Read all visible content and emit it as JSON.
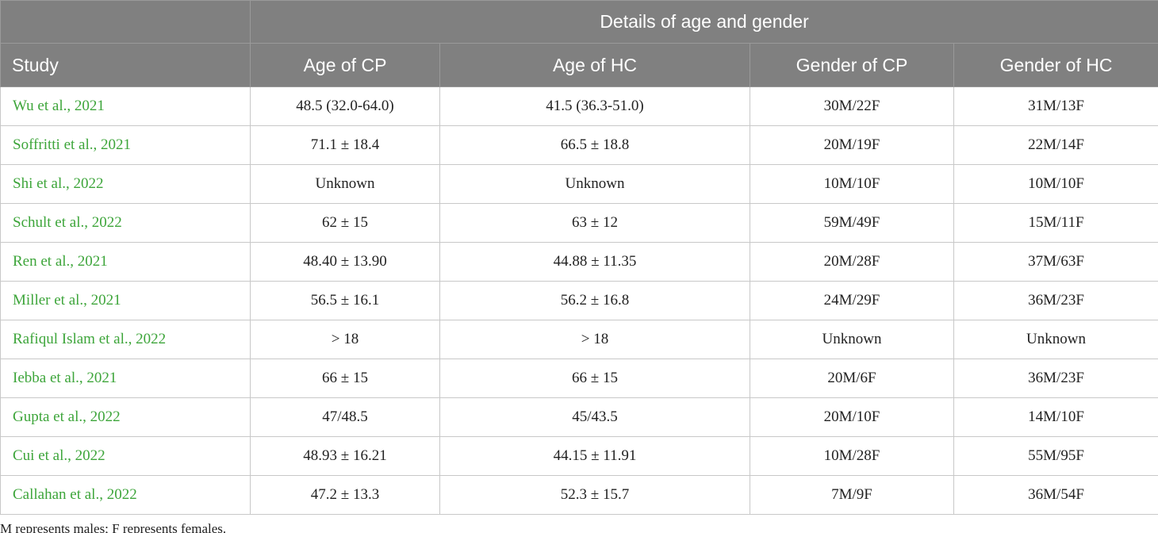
{
  "header": {
    "group_title": "Details of age and gender",
    "columns": [
      "Study",
      "Age of CP",
      "Age of HC",
      "Gender of CP",
      "Gender of HC"
    ]
  },
  "table": {
    "rows": [
      [
        "Wu et al., 2021",
        "48.5 (32.0-64.0)",
        "41.5 (36.3-51.0)",
        "30M/22F",
        "31M/13F"
      ],
      [
        "Soffritti et al., 2021",
        "71.1 ± 18.4",
        "66.5 ± 18.8",
        "20M/19F",
        "22M/14F"
      ],
      [
        "Shi et al., 2022",
        "Unknown",
        "Unknown",
        "10M/10F",
        "10M/10F"
      ],
      [
        "Schult et al., 2022",
        "62 ± 15",
        "63 ± 12",
        "59M/49F",
        "15M/11F"
      ],
      [
        "Ren et al., 2021",
        "48.40 ± 13.90",
        "44.88 ± 11.35",
        "20M/28F",
        "37M/63F"
      ],
      [
        "Miller et al., 2021",
        "56.5 ± 16.1",
        "56.2 ± 16.8",
        "24M/29F",
        "36M/23F"
      ],
      [
        "Rafiqul Islam et al., 2022",
        "> 18",
        "> 18",
        "Unknown",
        "Unknown"
      ],
      [
        "Iebba et al., 2021",
        "66 ± 15",
        "66 ± 15",
        "20M/6F",
        "36M/23F"
      ],
      [
        "Gupta et al., 2022",
        "47/48.5",
        "45/43.5",
        "20M/10F",
        "14M/10F"
      ],
      [
        "Cui et al., 2022",
        "48.93 ± 16.21",
        "44.15 ± 11.91",
        "10M/28F",
        "55M/95F"
      ],
      [
        "Callahan et al., 2022",
        "47.2 ± 13.3",
        "52.3 ± 15.7",
        "7M/9F",
        "36M/54F"
      ]
    ]
  },
  "footnote": "M represents males; F represents females."
}
